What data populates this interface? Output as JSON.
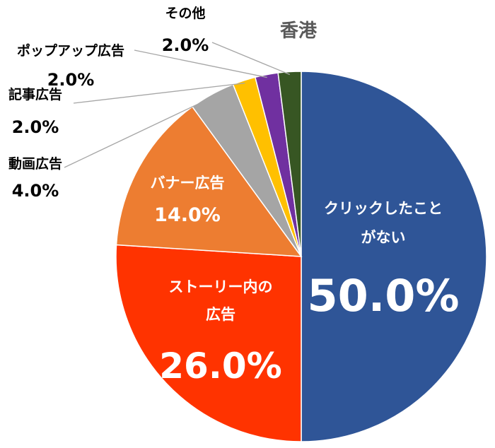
{
  "chart_data": {
    "type": "pie",
    "title": "香港",
    "slices": [
      {
        "label": "クリックしたことがない",
        "label_lines": [
          "クリックしたこと",
          "がない"
        ],
        "value": 50.0,
        "value_text": "50.0%",
        "color": "#2F5597"
      },
      {
        "label": "ストーリー内の広告",
        "label_lines": [
          "ストーリー内の",
          "広告"
        ],
        "value": 26.0,
        "value_text": "26.0%",
        "color": "#FF3300"
      },
      {
        "label": "バナー広告",
        "label_lines": [
          "バナー広告"
        ],
        "value": 14.0,
        "value_text": "14.0%",
        "color": "#ED7D31"
      },
      {
        "label": "動画広告",
        "label_lines": [
          "動画広告"
        ],
        "value": 4.0,
        "value_text": "4.0%",
        "color": "#A5A5A5"
      },
      {
        "label": "記事広告",
        "label_lines": [
          "記事広告"
        ],
        "value": 2.0,
        "value_text": "2.0%",
        "color": "#FFC000"
      },
      {
        "label": "ポップアップ広告",
        "label_lines": [
          "ポップアップ広告"
        ],
        "value": 2.0,
        "value_text": "2.0%",
        "color": "#7030A0"
      },
      {
        "label": "その他",
        "label_lines": [
          "その他"
        ],
        "value": 2.0,
        "value_text": "2.0%",
        "color": "#375623"
      }
    ],
    "start": "12 o'clock",
    "direction": "clockwise",
    "legend": "none"
  }
}
